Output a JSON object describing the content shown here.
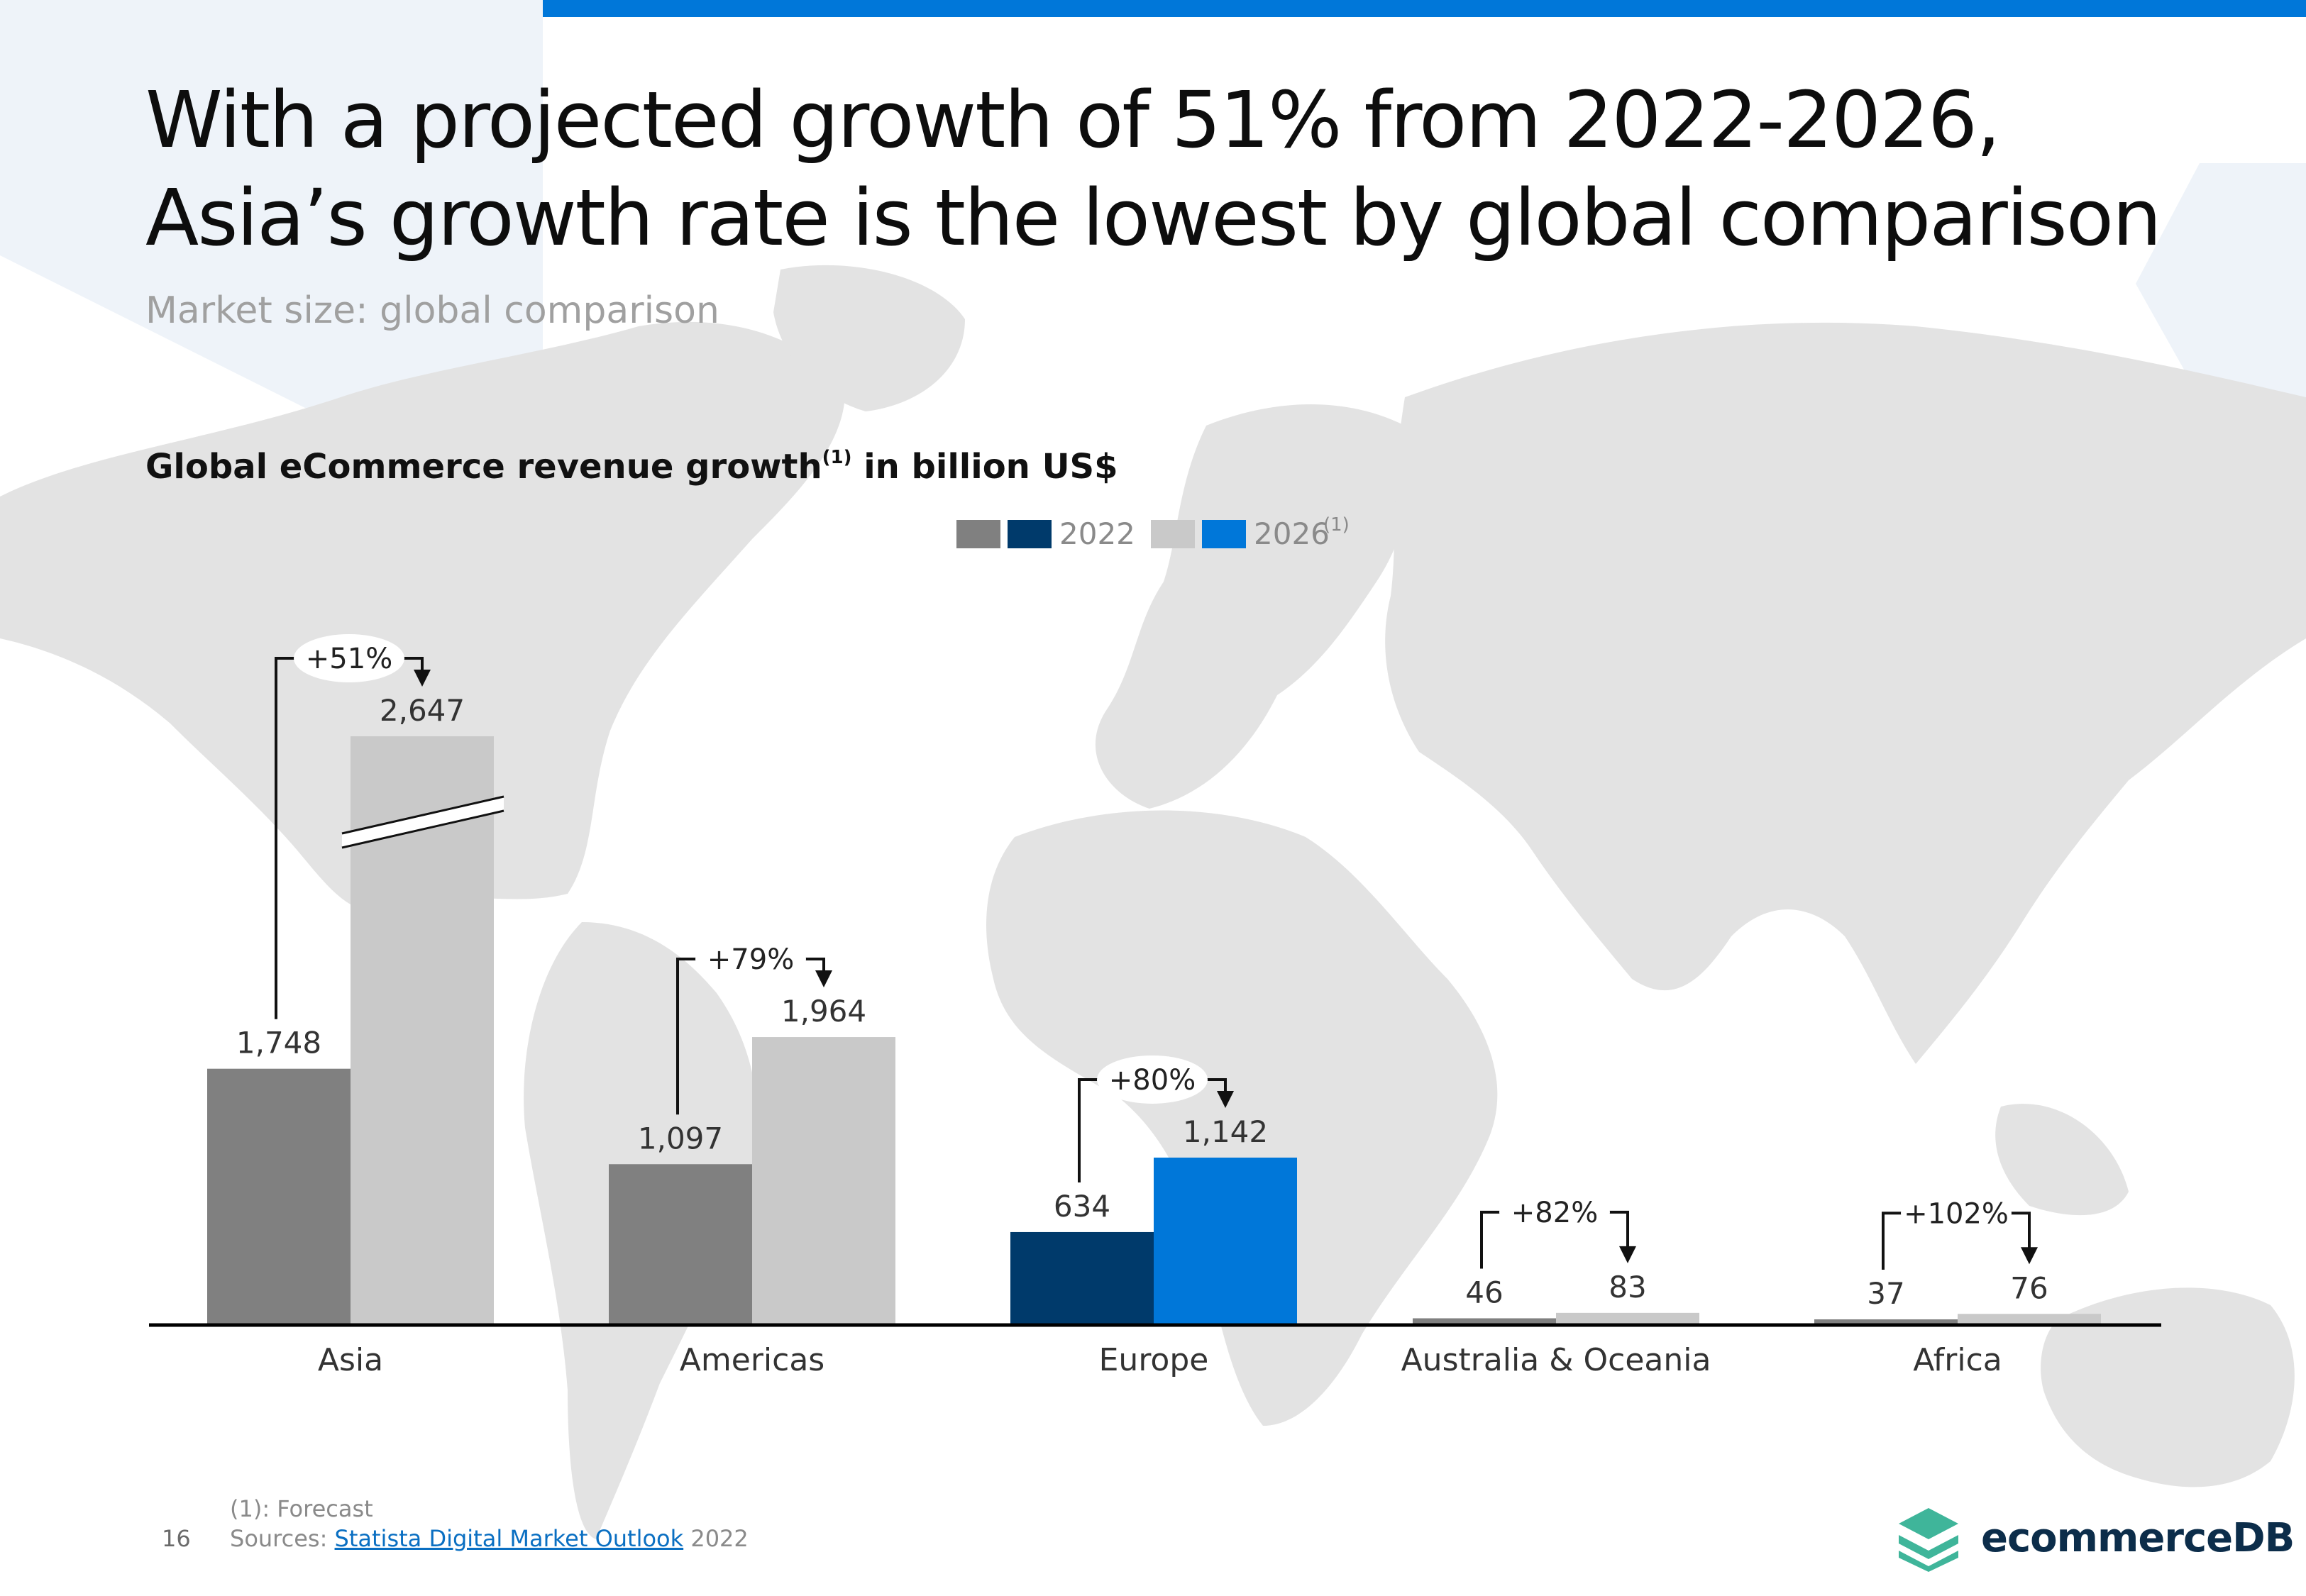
{
  "slide": {
    "title_line1": "With a projected growth of 51% from 2022-2026,",
    "title_line2": "Asia’s growth rate is the lowest by global comparison",
    "subtitle": "Market size: global comparison",
    "page_number": "16"
  },
  "chart_data": {
    "type": "bar",
    "title": "Global eCommerce revenue growth",
    "title_superscript": "(1)",
    "title_suffix": " in billion US$",
    "legend": {
      "labels": [
        "2022",
        "2026"
      ],
      "superscript": "(1)",
      "colors_2022": [
        "#808080",
        "#003a6b"
      ],
      "colors_2026": [
        "#c9c9c9",
        "#0077d9"
      ]
    },
    "categories": [
      "Asia",
      "Americas",
      "Europe",
      "Australia & Oceania",
      "Africa"
    ],
    "series": [
      {
        "name": "2022",
        "values": [
          1748,
          1097,
          634,
          46,
          37
        ],
        "labels": [
          "1,748",
          "1,097",
          "634",
          "46",
          "37"
        ]
      },
      {
        "name": "2026",
        "values": [
          2647,
          1964,
          1142,
          83,
          76
        ],
        "labels": [
          "2,647",
          "1,964",
          "1,142",
          "83",
          "76"
        ]
      }
    ],
    "growth_labels": [
      "+51%",
      "+79%",
      "+80%",
      "+82%",
      "+102%"
    ],
    "highlighted_category": "Europe",
    "axis_break": "Asia",
    "colors": {
      "base_2022": "#808080",
      "base_2026": "#c9c9c9",
      "highlight_2022": "#003a6b",
      "highlight_2026": "#0077d9"
    }
  },
  "footer": {
    "footnote": "(1): Forecast",
    "sources_prefix": "Sources: ",
    "sources_link": "Statista Digital Market Outlook",
    "sources_suffix": " 2022"
  },
  "brand": {
    "name": "ecommerceDB",
    "logo_icon": "stacked-layers-icon",
    "logo_color": "#3fb59a"
  },
  "theme": {
    "accent": "#0077d9",
    "top_bar": "#0077d9"
  }
}
